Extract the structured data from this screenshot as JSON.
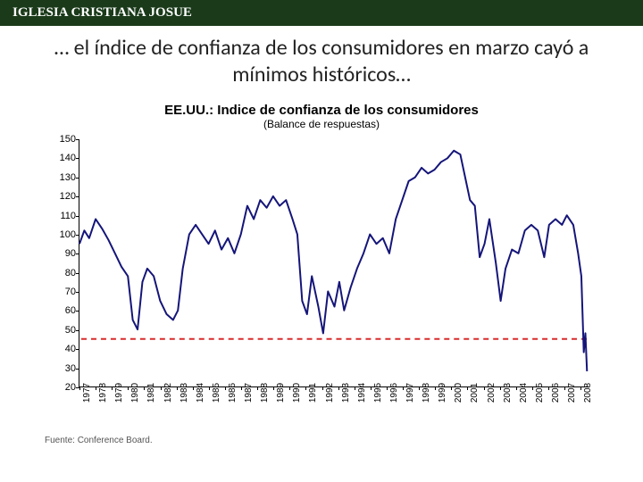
{
  "header": {
    "org_name": "IGLESIA CRISTIANA JOSUE"
  },
  "slide": {
    "title": "… el índice de confianza de los consumidores en marzo cayó a mínimos históricos…"
  },
  "chart": {
    "type": "line",
    "title": "EE.UU.: Indice de confianza de los consumidores",
    "subtitle": "(Balance de respuestas)",
    "source": "Fuente: Conference Board.",
    "ylim": [
      20,
      150
    ],
    "yticks": [
      20,
      30,
      40,
      50,
      60,
      70,
      80,
      90,
      100,
      110,
      120,
      130,
      140,
      150
    ],
    "xlabels": [
      "1977",
      "1978",
      "1979",
      "1980",
      "1981",
      "1982",
      "1983",
      "1984",
      "1985",
      "1986",
      "1987",
      "1988",
      "1989",
      "1990",
      "1991",
      "1992",
      "1993",
      "1994",
      "1995",
      "1996",
      "1997",
      "1998",
      "1999",
      "2000",
      "2001",
      "2002",
      "2003",
      "2004",
      "2005",
      "2006",
      "2007",
      "2008"
    ],
    "line_color": "#15157a",
    "line_width": 2,
    "reference_line": {
      "value": 45,
      "color": "#d82c2c",
      "dash": "6,5",
      "width": 2
    },
    "background_color": "#ffffff",
    "axis_color": "#000000",
    "tick_fontsize": 11,
    "xtick_fontsize": 10,
    "series": [
      {
        "x": 1977.0,
        "y": 95
      },
      {
        "x": 1977.3,
        "y": 102
      },
      {
        "x": 1977.6,
        "y": 98
      },
      {
        "x": 1978.0,
        "y": 108
      },
      {
        "x": 1978.4,
        "y": 103
      },
      {
        "x": 1978.8,
        "y": 97
      },
      {
        "x": 1979.2,
        "y": 90
      },
      {
        "x": 1979.6,
        "y": 83
      },
      {
        "x": 1980.0,
        "y": 78
      },
      {
        "x": 1980.3,
        "y": 55
      },
      {
        "x": 1980.6,
        "y": 50
      },
      {
        "x": 1980.9,
        "y": 75
      },
      {
        "x": 1981.2,
        "y": 82
      },
      {
        "x": 1981.6,
        "y": 78
      },
      {
        "x": 1982.0,
        "y": 65
      },
      {
        "x": 1982.4,
        "y": 58
      },
      {
        "x": 1982.8,
        "y": 55
      },
      {
        "x": 1983.1,
        "y": 60
      },
      {
        "x": 1983.4,
        "y": 82
      },
      {
        "x": 1983.8,
        "y": 100
      },
      {
        "x": 1984.2,
        "y": 105
      },
      {
        "x": 1984.6,
        "y": 100
      },
      {
        "x": 1985.0,
        "y": 95
      },
      {
        "x": 1985.4,
        "y": 102
      },
      {
        "x": 1985.8,
        "y": 92
      },
      {
        "x": 1986.2,
        "y": 98
      },
      {
        "x": 1986.6,
        "y": 90
      },
      {
        "x": 1987.0,
        "y": 100
      },
      {
        "x": 1987.4,
        "y": 115
      },
      {
        "x": 1987.8,
        "y": 108
      },
      {
        "x": 1988.2,
        "y": 118
      },
      {
        "x": 1988.6,
        "y": 114
      },
      {
        "x": 1989.0,
        "y": 120
      },
      {
        "x": 1989.4,
        "y": 115
      },
      {
        "x": 1989.8,
        "y": 118
      },
      {
        "x": 1990.2,
        "y": 108
      },
      {
        "x": 1990.5,
        "y": 100
      },
      {
        "x": 1990.8,
        "y": 65
      },
      {
        "x": 1991.1,
        "y": 58
      },
      {
        "x": 1991.4,
        "y": 78
      },
      {
        "x": 1991.8,
        "y": 62
      },
      {
        "x": 1992.1,
        "y": 48
      },
      {
        "x": 1992.4,
        "y": 70
      },
      {
        "x": 1992.8,
        "y": 62
      },
      {
        "x": 1993.1,
        "y": 75
      },
      {
        "x": 1993.4,
        "y": 60
      },
      {
        "x": 1993.8,
        "y": 72
      },
      {
        "x": 1994.2,
        "y": 82
      },
      {
        "x": 1994.6,
        "y": 90
      },
      {
        "x": 1995.0,
        "y": 100
      },
      {
        "x": 1995.4,
        "y": 95
      },
      {
        "x": 1995.8,
        "y": 98
      },
      {
        "x": 1996.2,
        "y": 90
      },
      {
        "x": 1996.6,
        "y": 108
      },
      {
        "x": 1997.0,
        "y": 118
      },
      {
        "x": 1997.4,
        "y": 128
      },
      {
        "x": 1997.8,
        "y": 130
      },
      {
        "x": 1998.2,
        "y": 135
      },
      {
        "x": 1998.6,
        "y": 132
      },
      {
        "x": 1999.0,
        "y": 134
      },
      {
        "x": 1999.4,
        "y": 138
      },
      {
        "x": 1999.8,
        "y": 140
      },
      {
        "x": 2000.2,
        "y": 144
      },
      {
        "x": 2000.6,
        "y": 142
      },
      {
        "x": 2000.9,
        "y": 130
      },
      {
        "x": 2001.2,
        "y": 118
      },
      {
        "x": 2001.5,
        "y": 115
      },
      {
        "x": 2001.8,
        "y": 88
      },
      {
        "x": 2002.1,
        "y": 95
      },
      {
        "x": 2002.4,
        "y": 108
      },
      {
        "x": 2002.8,
        "y": 85
      },
      {
        "x": 2003.1,
        "y": 65
      },
      {
        "x": 2003.4,
        "y": 82
      },
      {
        "x": 2003.8,
        "y": 92
      },
      {
        "x": 2004.2,
        "y": 90
      },
      {
        "x": 2004.6,
        "y": 102
      },
      {
        "x": 2005.0,
        "y": 105
      },
      {
        "x": 2005.4,
        "y": 102
      },
      {
        "x": 2005.8,
        "y": 88
      },
      {
        "x": 2006.1,
        "y": 105
      },
      {
        "x": 2006.5,
        "y": 108
      },
      {
        "x": 2006.9,
        "y": 105
      },
      {
        "x": 2007.2,
        "y": 110
      },
      {
        "x": 2007.6,
        "y": 105
      },
      {
        "x": 2007.9,
        "y": 90
      },
      {
        "x": 2008.1,
        "y": 78
      },
      {
        "x": 2008.25,
        "y": 38
      },
      {
        "x": 2008.35,
        "y": 48
      },
      {
        "x": 2008.45,
        "y": 28
      }
    ]
  }
}
